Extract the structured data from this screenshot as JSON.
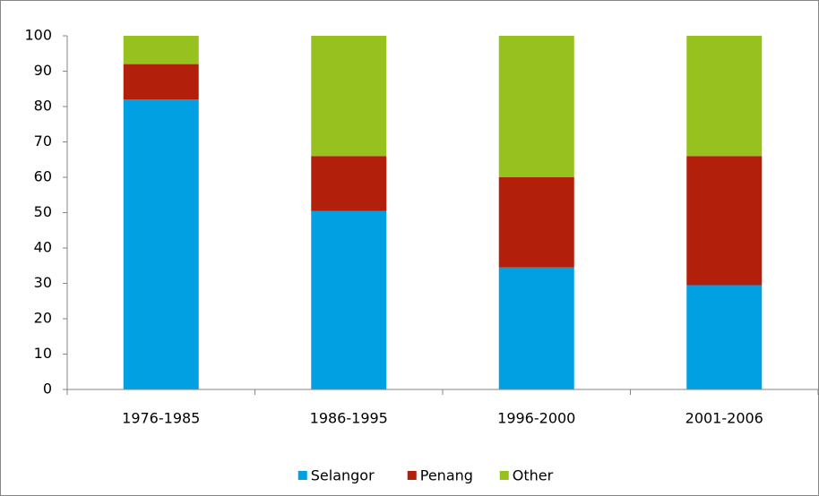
{
  "chart_data": {
    "type": "stacked_bar",
    "categories": [
      "1976-1985",
      "1986-1995",
      "1996-2000",
      "2001-2006"
    ],
    "series": [
      {
        "name": "Selangor",
        "color": "#00a0e3",
        "values": [
          82,
          50.5,
          34.5,
          29.5
        ]
      },
      {
        "name": "Penang",
        "color": "#b2200c",
        "values": [
          10,
          15.5,
          25.5,
          36.5
        ]
      },
      {
        "name": "Other",
        "color": "#97c11f",
        "values": [
          8,
          34,
          40,
          34
        ]
      }
    ],
    "ylim": [
      0,
      100
    ],
    "yticks": [
      0,
      10,
      20,
      30,
      40,
      50,
      60,
      70,
      80,
      90,
      100
    ],
    "grid": false,
    "legend": "bottom"
  }
}
